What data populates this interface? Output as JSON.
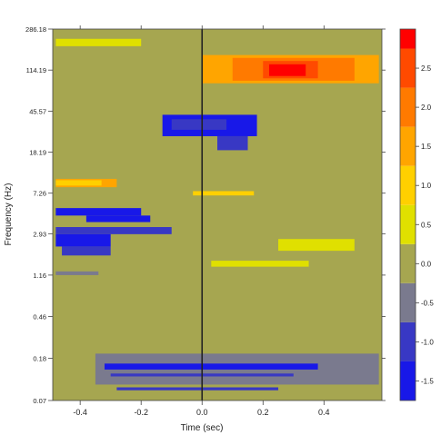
{
  "chart_data": {
    "type": "heatmap",
    "xlabel": "Time (sec)",
    "ylabel": "Frequency (Hz)",
    "x_ticks": [
      -0.4,
      -0.2,
      0.0,
      0.2,
      0.4
    ],
    "x_tick_labels": [
      "-0.4",
      "-0.2",
      "0.0",
      "0.2",
      "0.4"
    ],
    "xlim": [
      -0.49,
      0.59
    ],
    "y_scale": "log",
    "y_ticks": [
      0.07,
      0.18,
      0.46,
      1.16,
      2.93,
      7.26,
      18.19,
      45.57,
      114.19,
      286.18
    ],
    "y_tick_labels": [
      "0.07",
      "0.18",
      "0.46",
      "1.16",
      "2.93",
      "7.26",
      "18.19",
      "45.57",
      "114.19",
      "286.18"
    ],
    "ylim": [
      0.07,
      286.18
    ],
    "vline_x": 0.0,
    "background_value": 0.0,
    "colorbar": {
      "bins": [
        {
          "lo": -1.75,
          "hi": -1.25,
          "color": "#1818e8"
        },
        {
          "lo": -1.25,
          "hi": -0.75,
          "color": "#3838c4"
        },
        {
          "lo": -0.75,
          "hi": -0.25,
          "color": "#7a7a8e"
        },
        {
          "lo": -0.25,
          "hi": 0.25,
          "color": "#a6a650"
        },
        {
          "lo": 0.25,
          "hi": 0.75,
          "color": "#e0e000"
        },
        {
          "lo": 0.75,
          "hi": 1.25,
          "color": "#ffd000"
        },
        {
          "lo": 1.25,
          "hi": 1.75,
          "color": "#ffa500"
        },
        {
          "lo": 1.75,
          "hi": 2.25,
          "color": "#ff7a00"
        },
        {
          "lo": 2.25,
          "hi": 2.75,
          "color": "#ff4a00"
        },
        {
          "lo": 2.75,
          "hi": 3.0,
          "color": "#ff0000"
        }
      ],
      "ticks": [
        -1.5,
        -1.0,
        -0.5,
        0.0,
        0.5,
        1.0,
        1.5,
        2.0,
        2.5
      ],
      "tick_labels": [
        "-1.5",
        "-1.0",
        "-0.5",
        "0.0",
        "0.5",
        "1.0",
        "1.5",
        "2.0",
        "2.5"
      ],
      "range": [
        -1.75,
        3.0
      ]
    },
    "regions": [
      {
        "t0": 0.0,
        "t1": 0.58,
        "f0": 85,
        "f1": 160,
        "value": 1.5
      },
      {
        "t0": 0.1,
        "t1": 0.5,
        "f0": 90,
        "f1": 150,
        "value": 2.0
      },
      {
        "t0": 0.2,
        "t1": 0.38,
        "f0": 95,
        "f1": 140,
        "value": 2.5
      },
      {
        "t0": 0.22,
        "t1": 0.34,
        "f0": 100,
        "f1": 130,
        "value": 2.8
      },
      {
        "t0": -0.48,
        "t1": -0.2,
        "f0": 195,
        "f1": 230,
        "value": 0.5
      },
      {
        "t0": -0.13,
        "t1": 0.18,
        "f0": 26,
        "f1": 42,
        "value": -1.5
      },
      {
        "t0": -0.1,
        "t1": 0.08,
        "f0": 30,
        "f1": 38,
        "value": -1.0
      },
      {
        "t0": 0.05,
        "t1": 0.15,
        "f0": 19,
        "f1": 26,
        "value": -1.0
      },
      {
        "t0": -0.48,
        "t1": -0.28,
        "f0": 8.3,
        "f1": 10,
        "value": 1.5
      },
      {
        "t0": -0.48,
        "t1": -0.33,
        "f0": 8.6,
        "f1": 9.7,
        "value": 1.0
      },
      {
        "t0": -0.03,
        "t1": 0.17,
        "f0": 6.9,
        "f1": 7.6,
        "value": 1.0
      },
      {
        "t0": -0.48,
        "t1": -0.2,
        "f0": 4.4,
        "f1": 5.2,
        "value": -1.5
      },
      {
        "t0": -0.38,
        "t1": -0.17,
        "f0": 3.8,
        "f1": 4.4,
        "value": -1.5
      },
      {
        "t0": -0.48,
        "t1": -0.1,
        "f0": 2.9,
        "f1": 3.4,
        "value": -1.0
      },
      {
        "t0": -0.48,
        "t1": -0.3,
        "f0": 2.2,
        "f1": 2.9,
        "value": -1.5
      },
      {
        "t0": -0.46,
        "t1": -0.3,
        "f0": 1.8,
        "f1": 2.2,
        "value": -1.0
      },
      {
        "t0": -0.48,
        "t1": -0.34,
        "f0": 1.16,
        "f1": 1.26,
        "value": -0.5
      },
      {
        "t0": 0.25,
        "t1": 0.5,
        "f0": 2.0,
        "f1": 2.6,
        "value": 0.5
      },
      {
        "t0": 0.03,
        "t1": 0.35,
        "f0": 1.4,
        "f1": 1.6,
        "value": 0.5
      },
      {
        "t0": -0.42,
        "t1": 0.55,
        "f0": 0.105,
        "f1": 0.22,
        "value": 0.0
      },
      {
        "t0": -0.35,
        "t1": 0.58,
        "f0": 0.1,
        "f1": 0.2,
        "value": -0.5
      },
      {
        "t0": -0.32,
        "t1": 0.38,
        "f0": 0.14,
        "f1": 0.16,
        "value": -1.5
      },
      {
        "t0": -0.3,
        "t1": 0.3,
        "f0": 0.12,
        "f1": 0.128,
        "value": -1.0
      },
      {
        "t0": -0.28,
        "t1": 0.25,
        "f0": 0.088,
        "f1": 0.094,
        "value": -1.0
      }
    ]
  }
}
